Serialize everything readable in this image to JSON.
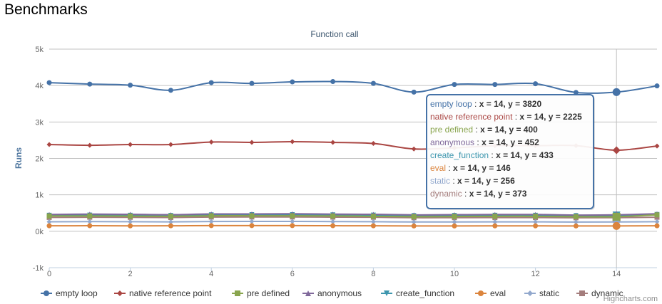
{
  "page": {
    "heading": "Benchmarks"
  },
  "chart_data": {
    "type": "line",
    "title": "Function call",
    "xlabel": "",
    "ylabel": "Runs",
    "xlim": [
      0,
      15
    ],
    "ylim": [
      -1000,
      5000
    ],
    "x_ticks": [
      0,
      2,
      4,
      6,
      8,
      10,
      12,
      14
    ],
    "x_tick_labels": [
      "0",
      "2",
      "4",
      "6",
      "8",
      "10",
      "12",
      "14"
    ],
    "y_ticks": [
      -1000,
      0,
      1000,
      2000,
      3000,
      4000,
      5000
    ],
    "y_tick_labels": [
      "-1k",
      "0k",
      "1k",
      "2k",
      "3k",
      "4k",
      "5k"
    ],
    "grid": true,
    "legend_position": "bottom",
    "x": [
      0,
      1,
      2,
      3,
      4,
      5,
      6,
      7,
      8,
      9,
      10,
      11,
      12,
      13,
      14,
      15
    ],
    "series": [
      {
        "name": "empty loop",
        "color": "#4572A7",
        "marker": "circle",
        "values": [
          4080,
          4040,
          4010,
          3870,
          4080,
          4060,
          4100,
          4110,
          4060,
          3820,
          4030,
          4030,
          4050,
          3810,
          3820,
          3990
        ]
      },
      {
        "name": "native reference point",
        "color": "#AA4643",
        "marker": "diamond",
        "values": [
          2380,
          2360,
          2380,
          2380,
          2450,
          2440,
          2460,
          2440,
          2410,
          2260,
          2290,
          2350,
          2350,
          2350,
          2225,
          2340
        ]
      },
      {
        "name": "pre defined",
        "color": "#89A54E",
        "marker": "square",
        "values": [
          420,
          420,
          415,
          410,
          425,
          425,
          425,
          420,
          410,
          400,
          405,
          410,
          410,
          400,
          400,
          450
        ]
      },
      {
        "name": "anonymous",
        "color": "#80699B",
        "marker": "triangle",
        "values": [
          460,
          470,
          465,
          455,
          475,
          475,
          480,
          470,
          465,
          450,
          455,
          460,
          460,
          445,
          452,
          480
        ]
      },
      {
        "name": "create_function",
        "color": "#3D96AE",
        "marker": "triangle-down",
        "values": [
          440,
          445,
          440,
          435,
          450,
          455,
          455,
          450,
          445,
          430,
          435,
          440,
          440,
          430,
          433,
          460
        ]
      },
      {
        "name": "eval",
        "color": "#DB843D",
        "marker": "circle",
        "values": [
          150,
          152,
          148,
          150,
          155,
          155,
          155,
          152,
          150,
          145,
          146,
          148,
          148,
          145,
          146,
          150
        ]
      },
      {
        "name": "static",
        "color": "#92A8CD",
        "marker": "diamond",
        "values": [
          260,
          265,
          262,
          258,
          268,
          270,
          270,
          266,
          262,
          255,
          256,
          258,
          258,
          254,
          256,
          262
        ]
      },
      {
        "name": "dynamic",
        "color": "#A47D7C",
        "marker": "square",
        "values": [
          380,
          385,
          382,
          378,
          390,
          392,
          392,
          388,
          384,
          372,
          374,
          376,
          376,
          370,
          373,
          385
        ]
      }
    ],
    "tooltip": {
      "x": 14,
      "x_text": "x = 14,",
      "items": [
        {
          "name": "empty loop",
          "color": "#4572A7",
          "value_text": "y = 3820"
        },
        {
          "name": "native reference point",
          "color": "#AA4643",
          "value_text": "y = 2225"
        },
        {
          "name": "pre defined",
          "color": "#89A54E",
          "value_text": "y = 400"
        },
        {
          "name": "anonymous",
          "color": "#80699B",
          "value_text": "y = 452"
        },
        {
          "name": "create_function",
          "color": "#3D96AE",
          "value_text": "y = 433"
        },
        {
          "name": "eval",
          "color": "#DB843D",
          "value_text": "y = 146"
        },
        {
          "name": "static",
          "color": "#92A8CD",
          "value_text": "y = 256"
        },
        {
          "name": "dynamic",
          "color": "#A47D7C",
          "value_text": "y = 373"
        }
      ]
    },
    "credits": "Highcharts.com"
  }
}
